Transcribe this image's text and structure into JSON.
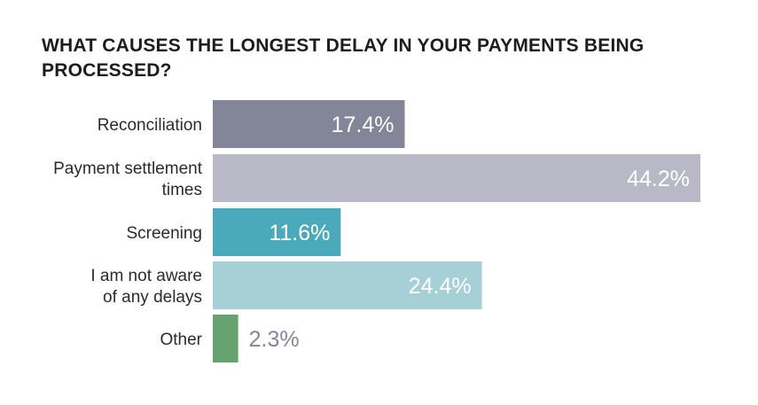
{
  "chart_data": {
    "type": "bar",
    "orientation": "horizontal",
    "title": "WHAT CAUSES THE LONGEST DELAY IN YOUR PAYMENTS BEING PROCESSED?",
    "categories": [
      [
        "Reconciliation"
      ],
      [
        "Payment settlement",
        "times"
      ],
      [
        "Screening"
      ],
      [
        "I am not aware",
        "of any delays"
      ],
      [
        "Other"
      ]
    ],
    "values": [
      17.4,
      44.2,
      11.6,
      24.4,
      2.3
    ],
    "value_labels": [
      "17.4%",
      "44.2%",
      "11.6%",
      "24.4%",
      "2.3%"
    ],
    "colors": [
      "#838599",
      "#b8b8c7",
      "#4aa9ba",
      "#a6cfd6",
      "#66a26f"
    ],
    "unit": "%",
    "xlim": [
      0,
      44.2
    ],
    "grid": false,
    "legend": "none"
  }
}
